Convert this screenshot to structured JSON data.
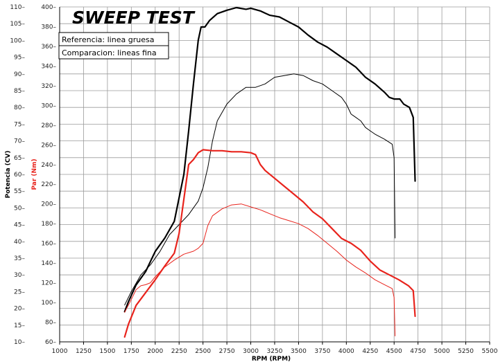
{
  "chart_data": {
    "type": "line",
    "title": "SWEEP TEST",
    "legend": {
      "placement": "top-left",
      "entries": [
        "Referencia: linea gruesa",
        "Comparacion: lineas fina"
      ]
    },
    "xlabel": "RPM (RPM)",
    "ylabel_left": "Potencia (CV)",
    "ylabel_right": "Par (Nm)",
    "xlim": [
      1000,
      5500
    ],
    "x_ticks": [
      1000,
      1250,
      1500,
      1750,
      2000,
      2250,
      2500,
      2750,
      3000,
      3250,
      3500,
      3750,
      4000,
      4250,
      4500,
      4750,
      5000,
      5250,
      5500
    ],
    "ylim_left": [
      10,
      110
    ],
    "y_ticks_left": [
      10,
      15,
      20,
      25,
      30,
      35,
      40,
      45,
      50,
      55,
      60,
      65,
      70,
      75,
      80,
      85,
      90,
      95,
      100,
      105,
      110
    ],
    "ylim_right": [
      60,
      400
    ],
    "y_ticks_right": [
      60,
      80,
      100,
      120,
      140,
      160,
      180,
      200,
      220,
      240,
      260,
      280,
      300,
      320,
      340,
      360,
      380,
      400
    ],
    "grid": true,
    "colors": {
      "power": "#000000",
      "torque": "#e8231c",
      "grid": "#9a9a9a"
    },
    "series": [
      {
        "quantity": "power",
        "axis": "left",
        "weight": "thick",
        "points": [
          [
            1680,
            19
          ],
          [
            1720,
            22
          ],
          [
            1800,
            27
          ],
          [
            1900,
            31
          ],
          [
            2000,
            37
          ],
          [
            2100,
            41
          ],
          [
            2200,
            46
          ],
          [
            2300,
            60
          ],
          [
            2350,
            73
          ],
          [
            2400,
            87
          ],
          [
            2450,
            100
          ],
          [
            2480,
            104
          ],
          [
            2520,
            104
          ],
          [
            2570,
            106
          ],
          [
            2650,
            108
          ],
          [
            2750,
            109
          ],
          [
            2850,
            109.8
          ],
          [
            2950,
            109.3
          ],
          [
            3000,
            109.6
          ],
          [
            3100,
            108.8
          ],
          [
            3200,
            107.5
          ],
          [
            3300,
            107
          ],
          [
            3400,
            105.5
          ],
          [
            3500,
            104
          ],
          [
            3600,
            101.6
          ],
          [
            3700,
            99.5
          ],
          [
            3800,
            98
          ],
          [
            3900,
            96
          ],
          [
            4000,
            94
          ],
          [
            4100,
            92
          ],
          [
            4200,
            89
          ],
          [
            4300,
            87
          ],
          [
            4400,
            84.5
          ],
          [
            4450,
            83
          ],
          [
            4500,
            82.5
          ],
          [
            4560,
            82.5
          ],
          [
            4600,
            81
          ],
          [
            4660,
            80
          ],
          [
            4700,
            77
          ],
          [
            4720,
            58
          ]
        ]
      },
      {
        "quantity": "power",
        "axis": "left",
        "weight": "thin",
        "points": [
          [
            1680,
            21
          ],
          [
            1750,
            25
          ],
          [
            1850,
            30
          ],
          [
            1950,
            33
          ],
          [
            2050,
            37
          ],
          [
            2150,
            42
          ],
          [
            2250,
            45
          ],
          [
            2350,
            48
          ],
          [
            2450,
            52
          ],
          [
            2500,
            56
          ],
          [
            2550,
            62
          ],
          [
            2600,
            70
          ],
          [
            2650,
            76
          ],
          [
            2750,
            81
          ],
          [
            2850,
            84
          ],
          [
            2950,
            86
          ],
          [
            3050,
            86
          ],
          [
            3150,
            87
          ],
          [
            3250,
            89
          ],
          [
            3350,
            89.5
          ],
          [
            3450,
            90
          ],
          [
            3550,
            89.5
          ],
          [
            3650,
            88
          ],
          [
            3750,
            87
          ],
          [
            3850,
            85
          ],
          [
            3950,
            83
          ],
          [
            4000,
            81
          ],
          [
            4050,
            78
          ],
          [
            4100,
            77
          ],
          [
            4150,
            76
          ],
          [
            4200,
            74
          ],
          [
            4250,
            73
          ],
          [
            4300,
            72
          ],
          [
            4400,
            70.5
          ],
          [
            4480,
            69
          ],
          [
            4500,
            65
          ],
          [
            4510,
            41
          ]
        ]
      },
      {
        "quantity": "torque",
        "axis": "right",
        "weight": "thick",
        "points": [
          [
            1680,
            65
          ],
          [
            1720,
            78
          ],
          [
            1800,
            97
          ],
          [
            1900,
            110
          ],
          [
            2000,
            123
          ],
          [
            2100,
            137
          ],
          [
            2200,
            150
          ],
          [
            2250,
            170
          ],
          [
            2300,
            205
          ],
          [
            2350,
            240
          ],
          [
            2400,
            245
          ],
          [
            2450,
            252
          ],
          [
            2500,
            255
          ],
          [
            2600,
            254
          ],
          [
            2700,
            254
          ],
          [
            2800,
            253
          ],
          [
            2900,
            253
          ],
          [
            3000,
            252
          ],
          [
            3050,
            250
          ],
          [
            3100,
            240
          ],
          [
            3150,
            234
          ],
          [
            3250,
            226
          ],
          [
            3350,
            218
          ],
          [
            3450,
            210
          ],
          [
            3550,
            202
          ],
          [
            3650,
            192
          ],
          [
            3750,
            185
          ],
          [
            3850,
            175
          ],
          [
            3950,
            165
          ],
          [
            4050,
            160
          ],
          [
            4150,
            153
          ],
          [
            4250,
            142
          ],
          [
            4350,
            133
          ],
          [
            4450,
            128
          ],
          [
            4550,
            123
          ],
          [
            4650,
            117
          ],
          [
            4700,
            112
          ],
          [
            4720,
            86
          ]
        ]
      },
      {
        "quantity": "torque",
        "axis": "right",
        "weight": "thin",
        "points": [
          [
            1680,
            90
          ],
          [
            1750,
            103
          ],
          [
            1800,
            113
          ],
          [
            1850,
            117
          ],
          [
            1900,
            118
          ],
          [
            1950,
            120
          ],
          [
            2000,
            126
          ],
          [
            2050,
            131
          ],
          [
            2100,
            136
          ],
          [
            2200,
            143
          ],
          [
            2300,
            149
          ],
          [
            2400,
            152
          ],
          [
            2450,
            155
          ],
          [
            2500,
            160
          ],
          [
            2550,
            178
          ],
          [
            2600,
            188
          ],
          [
            2700,
            195
          ],
          [
            2800,
            199
          ],
          [
            2900,
            200
          ],
          [
            3000,
            197
          ],
          [
            3100,
            194
          ],
          [
            3200,
            190
          ],
          [
            3300,
            186
          ],
          [
            3400,
            183
          ],
          [
            3500,
            180
          ],
          [
            3600,
            175
          ],
          [
            3700,
            168
          ],
          [
            3800,
            160
          ],
          [
            3900,
            152
          ],
          [
            4000,
            143
          ],
          [
            4100,
            136
          ],
          [
            4200,
            130
          ],
          [
            4300,
            123
          ],
          [
            4400,
            118
          ],
          [
            4480,
            114
          ],
          [
            4500,
            105
          ],
          [
            4510,
            66
          ]
        ]
      }
    ]
  }
}
